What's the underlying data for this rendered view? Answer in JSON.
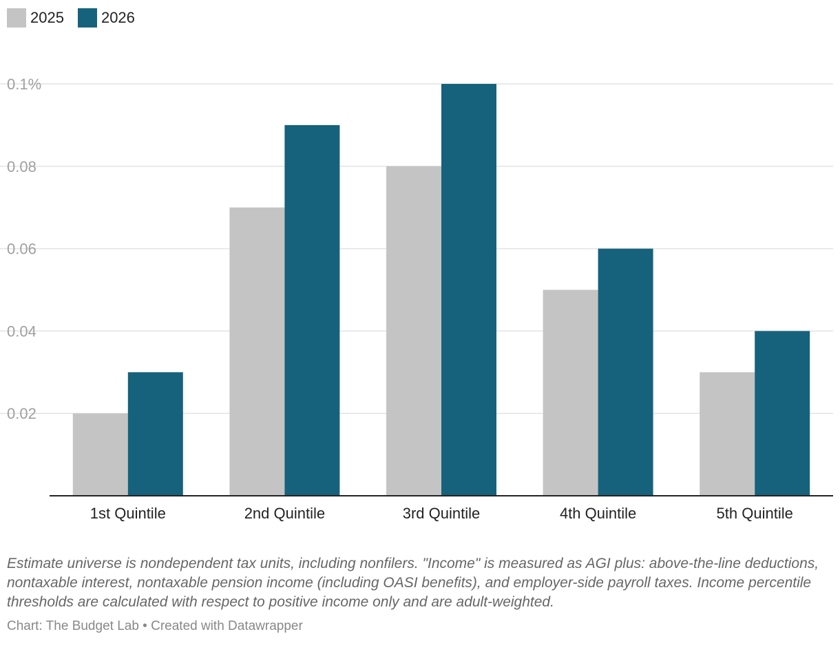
{
  "legend": {
    "items": [
      {
        "label": "2025",
        "color": "#c4c4c4"
      },
      {
        "label": "2026",
        "color": "#16627c"
      }
    ]
  },
  "chart_data": {
    "type": "bar",
    "categories": [
      "1st Quintile",
      "2nd Quintile",
      "3rd Quintile",
      "4th Quintile",
      "5th Quintile"
    ],
    "series": [
      {
        "name": "2025",
        "values": [
          0.02,
          0.07,
          0.08,
          0.05,
          0.03
        ],
        "color": "#c4c4c4"
      },
      {
        "name": "2026",
        "values": [
          0.03,
          0.09,
          0.1,
          0.06,
          0.04
        ],
        "color": "#16627c"
      }
    ],
    "yticks": [
      0.02,
      0.04,
      0.06,
      0.08,
      0.1
    ],
    "ytick_labels": [
      "0.02",
      "0.04",
      "0.06",
      "0.08",
      "0.1%"
    ],
    "ylim": [
      0,
      0.1
    ],
    "grid": true,
    "legend_position": "top-left"
  },
  "note": "Estimate universe is nondependent tax units, including nonfilers. \"Income\" is measured as AGI plus: above-the-line deductions, nontaxable interest, nontaxable pension income (including OASI benefits), and employer-side payroll taxes. Income percentile thresholds are calculated with respect to positive income only and are adult-weighted.",
  "credit": "Chart: The Budget Lab • Created with Datawrapper"
}
